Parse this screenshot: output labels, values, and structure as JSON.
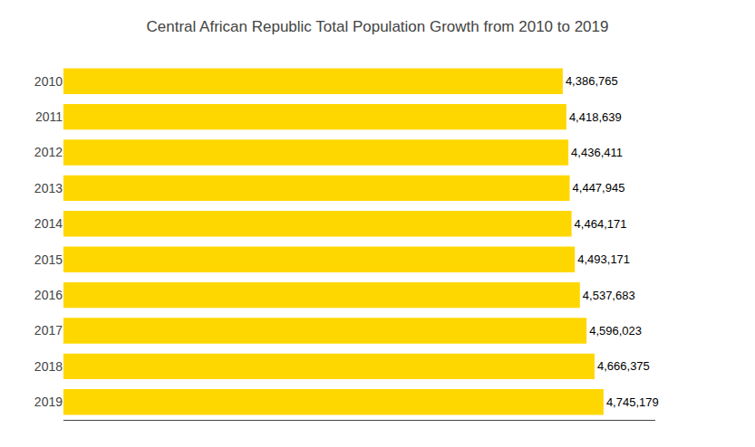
{
  "chart_data": {
    "type": "bar",
    "orientation": "horizontal",
    "title": "Central African Republic Total Population Growth from 2010 to 2019",
    "categories": [
      "2010",
      "2011",
      "2012",
      "2013",
      "2014",
      "2015",
      "2016",
      "2017",
      "2018",
      "2019"
    ],
    "values": [
      4386765,
      4418639,
      4436411,
      4447945,
      4464171,
      4493171,
      4537683,
      4596023,
      4666375,
      4745179
    ],
    "value_labels": [
      "4,386,765",
      "4,418,639",
      "4,436,411",
      "4,447,945",
      "4,464,171",
      "4,493,171",
      "4,537,683",
      "4,596,023",
      "4,666,375",
      "4,745,179"
    ],
    "color": "#FFD700",
    "xlim": [
      0,
      5200000
    ],
    "data_labels": true,
    "tick_labels": "y",
    "grid": false
  }
}
